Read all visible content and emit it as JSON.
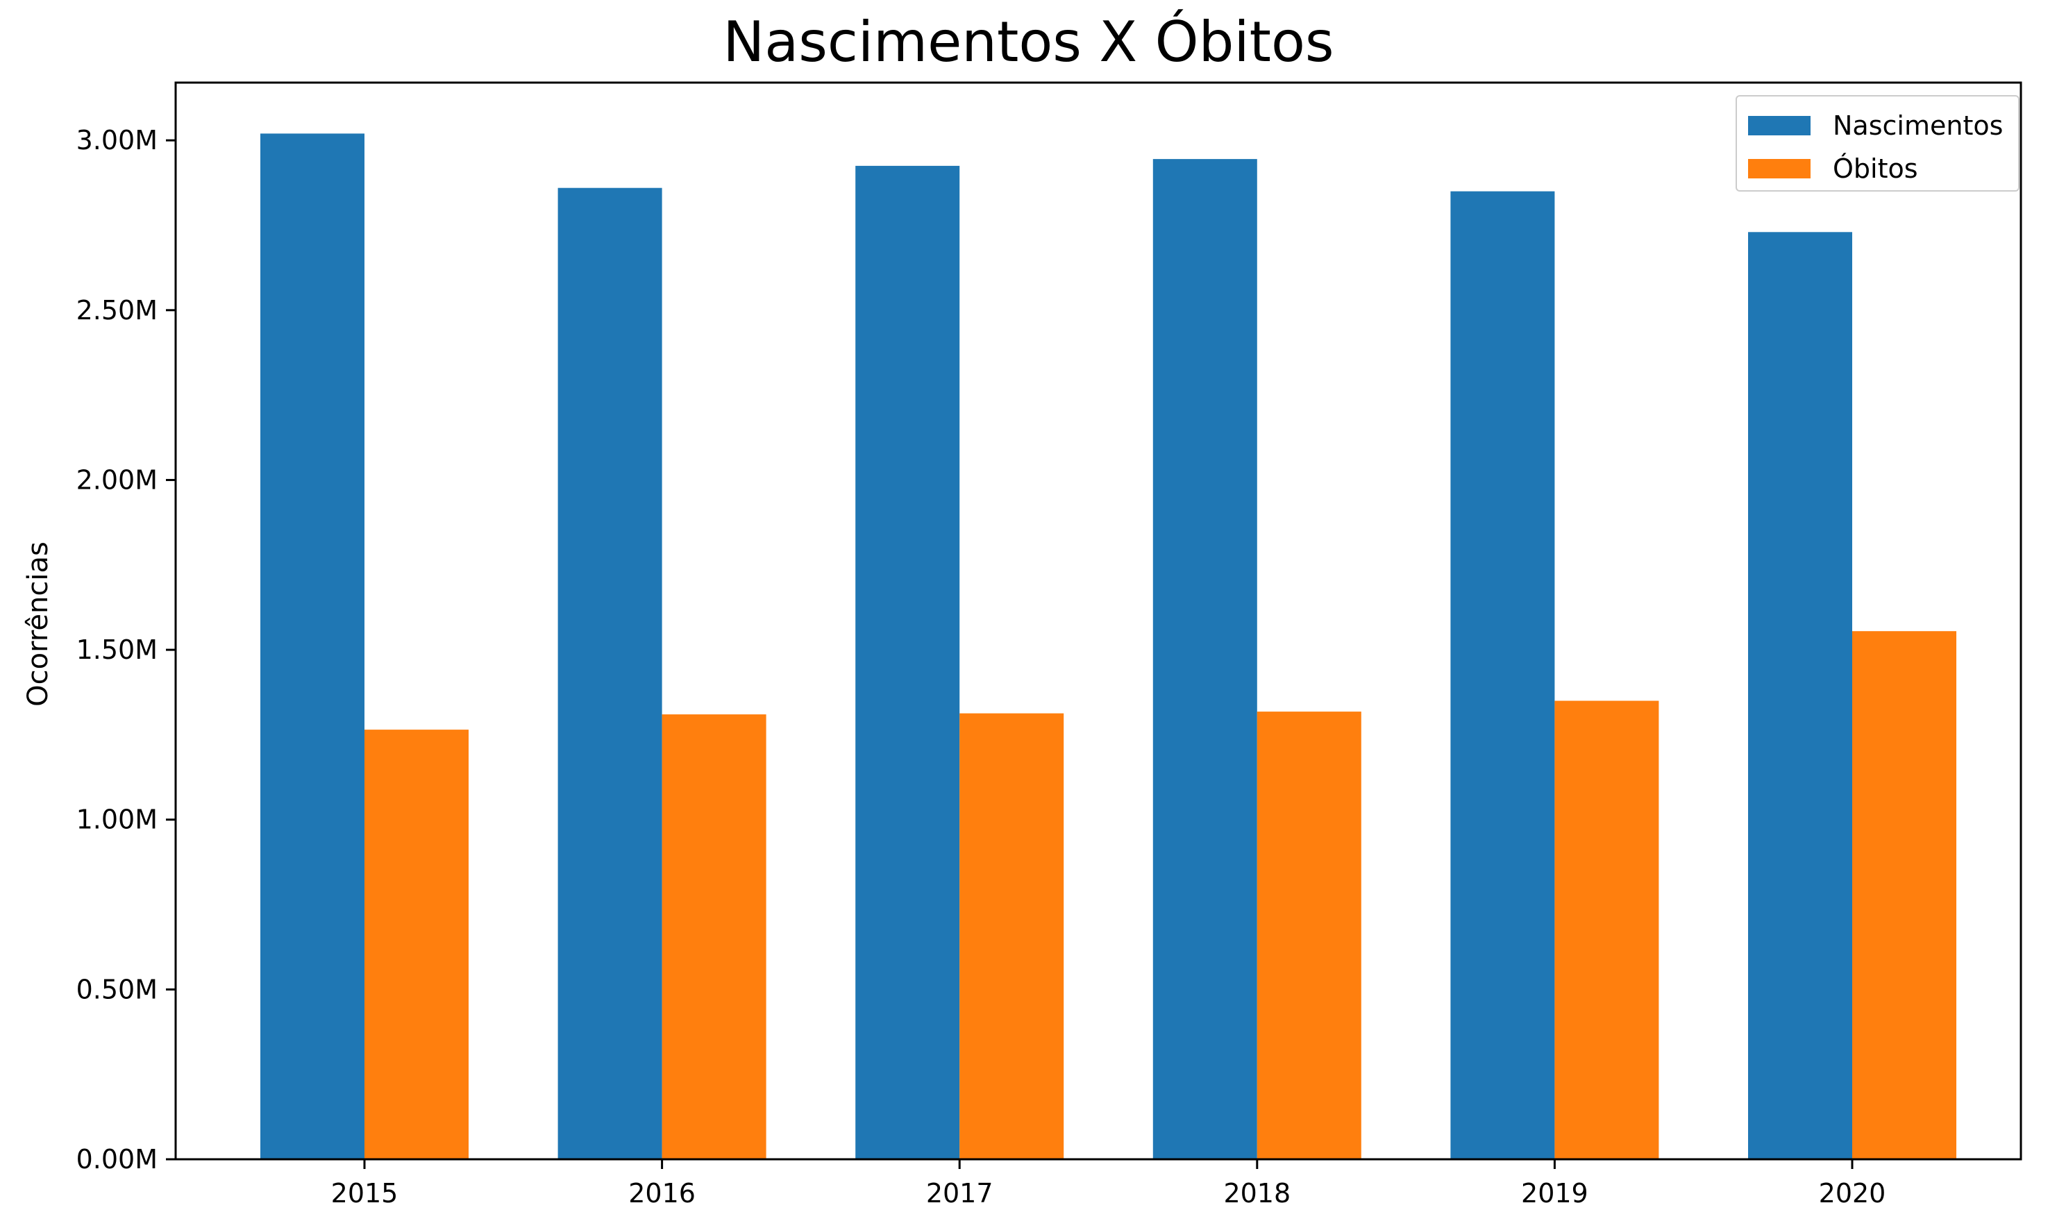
{
  "chart_data": {
    "type": "bar",
    "title": "Nascimentos X Óbitos",
    "xlabel": "",
    "ylabel": "Ocorrências",
    "categories": [
      "2015",
      "2016",
      "2017",
      "2018",
      "2019",
      "2020"
    ],
    "series": [
      {
        "name": "Nascimentos",
        "color": "#1f77b4",
        "values": [
          3.02,
          2.86,
          2.925,
          2.945,
          2.85,
          2.73
        ]
      },
      {
        "name": "Óbitos",
        "color": "#ff7f0e",
        "values": [
          1.265,
          1.31,
          1.313,
          1.318,
          1.35,
          1.555
        ]
      }
    ],
    "ylim": [
      0,
      3.17
    ],
    "yticks": [
      "0.00M",
      "0.50M",
      "1.00M",
      "1.50M",
      "2.00M",
      "2.50M",
      "3.00M"
    ],
    "grid": false,
    "legend_position": "top-right"
  }
}
